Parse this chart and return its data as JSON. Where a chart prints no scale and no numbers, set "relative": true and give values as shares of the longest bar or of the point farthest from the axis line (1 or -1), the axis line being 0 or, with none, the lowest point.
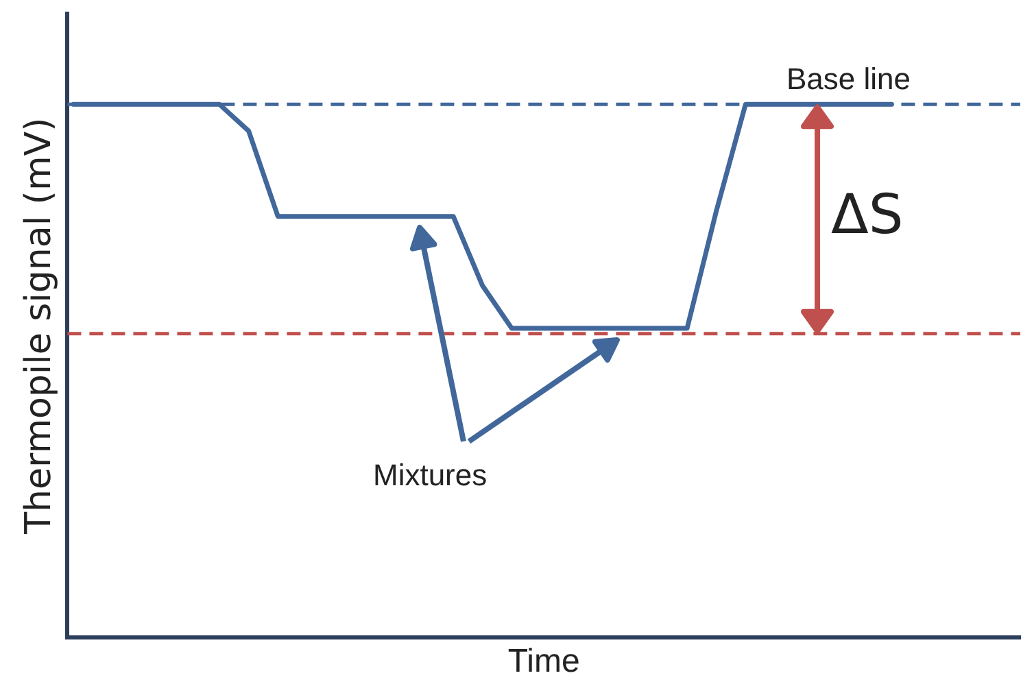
{
  "chart_data": {
    "type": "line",
    "relative": true,
    "xlabel": "Time",
    "ylabel": "Thermopile signal (mV)",
    "categories": [
      null,
      null,
      null,
      null,
      null,
      null,
      null,
      null,
      null,
      null,
      null,
      null,
      null,
      null,
      null,
      null,
      null,
      null,
      null,
      null,
      null,
      null,
      null,
      null,
      null,
      null,
      null,
      null,
      null
    ],
    "series": [
      {
        "color": "#41679b",
        "values": [
          1,
          1,
          1,
          1,
          1,
          1,
          0.95,
          0.79,
          0.79,
          0.79,
          0.79,
          0.79,
          0.79,
          0.79,
          0.66,
          0.58,
          0.58,
          0.58,
          0.58,
          0.58,
          0.58,
          0.58,
          0.8,
          1,
          1,
          1,
          1,
          1,
          1
        ]
      }
    ],
    "ref_lines": [
      {
        "axis": "y",
        "value": 1,
        "label": "Base line",
        "color": "#41679b",
        "line_style": "dashed"
      },
      {
        "axis": "y",
        "value": 0.57,
        "color": "#c0504d",
        "line_style": "dashed"
      }
    ],
    "annotations": [
      "ΔS",
      "Mixtures"
    ],
    "grid": false,
    "legend": false,
    "marker": "none",
    "line_style": "solid"
  }
}
